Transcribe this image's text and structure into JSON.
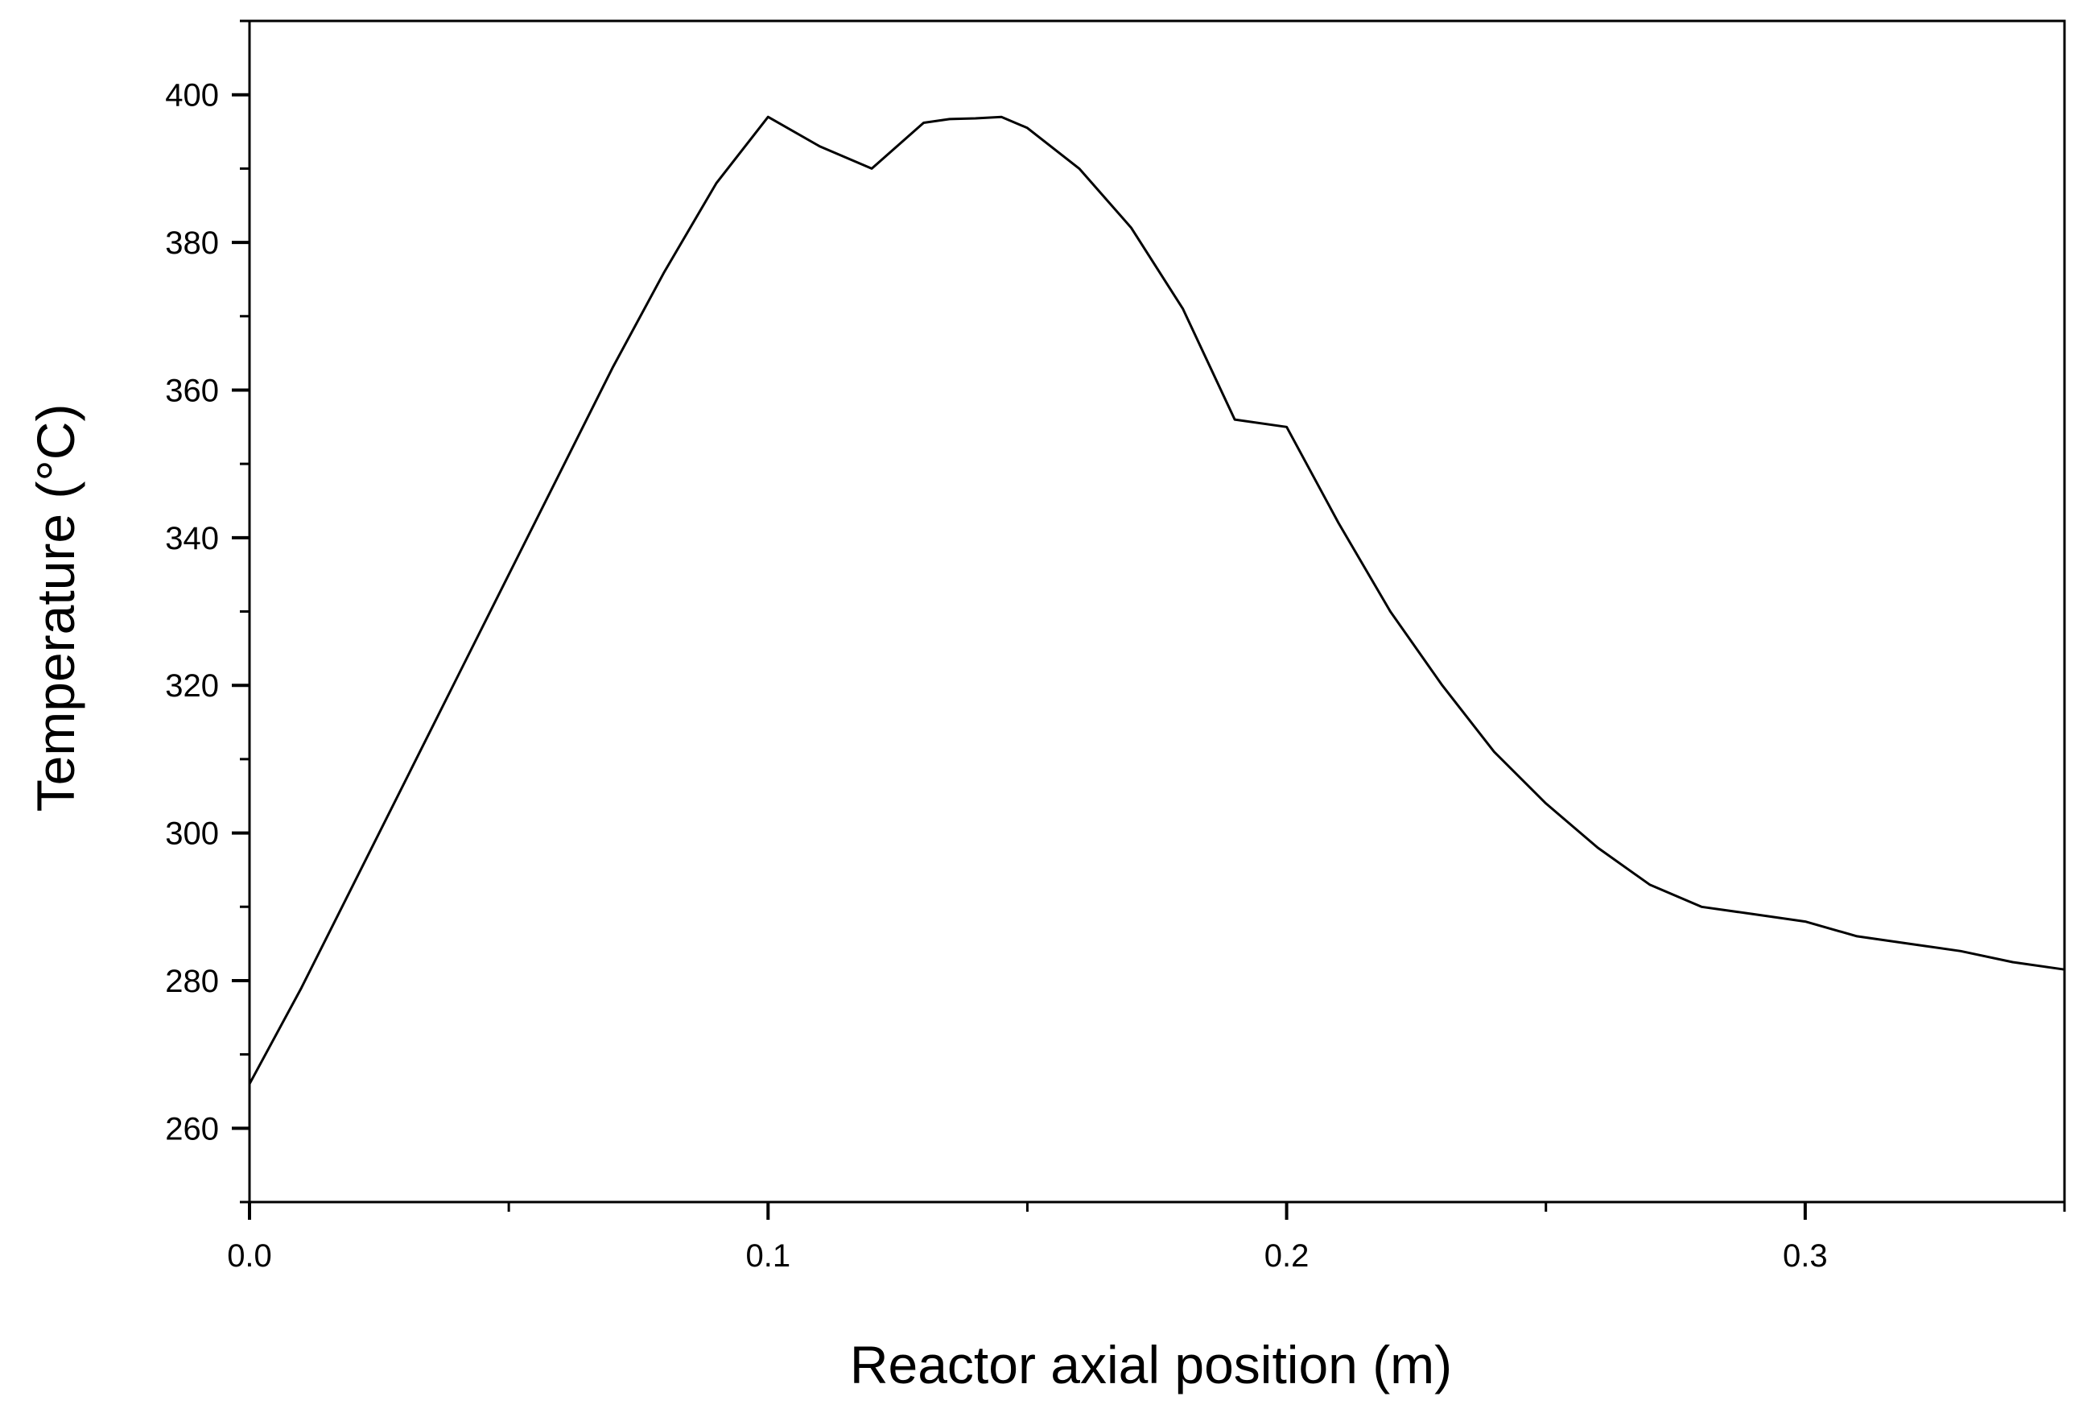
{
  "chart_data": {
    "type": "line",
    "title": "",
    "xlabel": "Reactor axial position (m)",
    "ylabel": "Temperature (°C)",
    "xlim": [
      0.0,
      0.35
    ],
    "ylim": [
      250,
      410
    ],
    "x_ticks": [
      0.0,
      0.1,
      0.2,
      0.3
    ],
    "x_tick_labels": [
      "0.0",
      "0.1",
      "0.2",
      "0.3"
    ],
    "x_minor_ticks": [
      0.05,
      0.15,
      0.25,
      0.35
    ],
    "y_ticks": [
      260,
      280,
      300,
      320,
      340,
      360,
      380,
      400
    ],
    "y_tick_labels": [
      "260",
      "280",
      "300",
      "320",
      "340",
      "360",
      "380",
      "400"
    ],
    "y_minor_ticks": [
      250,
      270,
      290,
      310,
      330,
      350,
      370,
      390,
      410
    ],
    "grid": false,
    "legend": "none",
    "line_color": "#000000",
    "series": [
      {
        "x": [
          0.0,
          0.01,
          0.02,
          0.03,
          0.04,
          0.05,
          0.06,
          0.07,
          0.08,
          0.09,
          0.1,
          0.11,
          0.12,
          0.13,
          0.135,
          0.14,
          0.145,
          0.15,
          0.16,
          0.17,
          0.18,
          0.19,
          0.2,
          0.21,
          0.22,
          0.23,
          0.24,
          0.25,
          0.26,
          0.27,
          0.28,
          0.29,
          0.3,
          0.31,
          0.32,
          0.33,
          0.34,
          0.35
        ],
        "y": [
          266,
          279,
          293,
          307,
          321,
          335,
          349,
          363,
          376,
          388,
          397,
          393,
          390,
          396.2,
          396.7,
          396.8,
          397,
          395.5,
          390,
          382,
          371,
          356,
          355,
          342,
          330,
          320,
          311,
          304,
          298,
          293,
          290,
          289,
          288,
          286,
          285,
          284,
          282.5,
          281.5
        ]
      }
    ]
  }
}
